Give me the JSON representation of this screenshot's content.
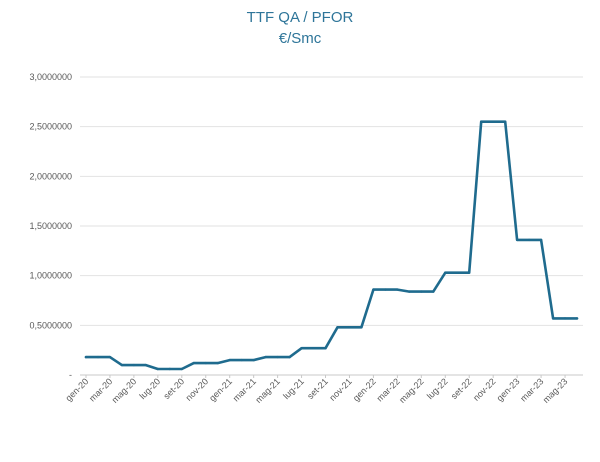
{
  "chart_data": {
    "type": "line",
    "title": "TTF QA / PFOR",
    "subtitle": "€/Smc",
    "xlabel": "",
    "ylabel": "",
    "ylim": [
      0,
      3.0
    ],
    "y_ticks": [
      0,
      0.5,
      1.0,
      1.5,
      2.0,
      2.5,
      3.0
    ],
    "y_tick_labels": [
      "-",
      "0,5000000",
      "1,0000000",
      "1,5000000",
      "2,0000000",
      "2,5000000",
      "3,0000000"
    ],
    "x_tick_labels": [
      "gen-20",
      "mar-20",
      "mag-20",
      "lug-20",
      "set-20",
      "nov-20",
      "gen-21",
      "mar-21",
      "mag-21",
      "lug-21",
      "set-21",
      "nov-21",
      "gen-22",
      "mar-22",
      "mag-22",
      "lug-22",
      "set-22",
      "nov-22",
      "gen-23",
      "mar-23",
      "mag-23"
    ],
    "grid": true,
    "legend": "none",
    "line_color": "#1f6b8e",
    "series": [
      {
        "x": [
          "gen-20",
          "feb-20",
          "mar-20",
          "apr-20",
          "mag-20",
          "giu-20",
          "lug-20",
          "ago-20",
          "set-20",
          "ott-20",
          "nov-20",
          "dic-20",
          "gen-21",
          "feb-21",
          "mar-21",
          "apr-21",
          "mag-21",
          "giu-21",
          "lug-21",
          "ago-21",
          "set-21",
          "ott-21",
          "nov-21",
          "dic-21",
          "gen-22",
          "feb-22",
          "mar-22",
          "apr-22",
          "mag-22",
          "giu-22",
          "lug-22",
          "ago-22",
          "set-22",
          "ott-22",
          "nov-22",
          "dic-22",
          "gen-23",
          "feb-23",
          "mar-23",
          "apr-23",
          "mag-23",
          "giu-23"
        ],
        "values": [
          0.18,
          0.18,
          0.18,
          0.1,
          0.1,
          0.1,
          0.06,
          0.06,
          0.06,
          0.12,
          0.12,
          0.12,
          0.15,
          0.15,
          0.15,
          0.18,
          0.18,
          0.18,
          0.27,
          0.27,
          0.27,
          0.48,
          0.48,
          0.48,
          0.86,
          0.86,
          0.86,
          0.84,
          0.84,
          0.84,
          1.03,
          1.03,
          1.03,
          2.55,
          2.55,
          2.55,
          1.36,
          1.36,
          1.36,
          0.57,
          0.57,
          0.57
        ]
      }
    ]
  }
}
